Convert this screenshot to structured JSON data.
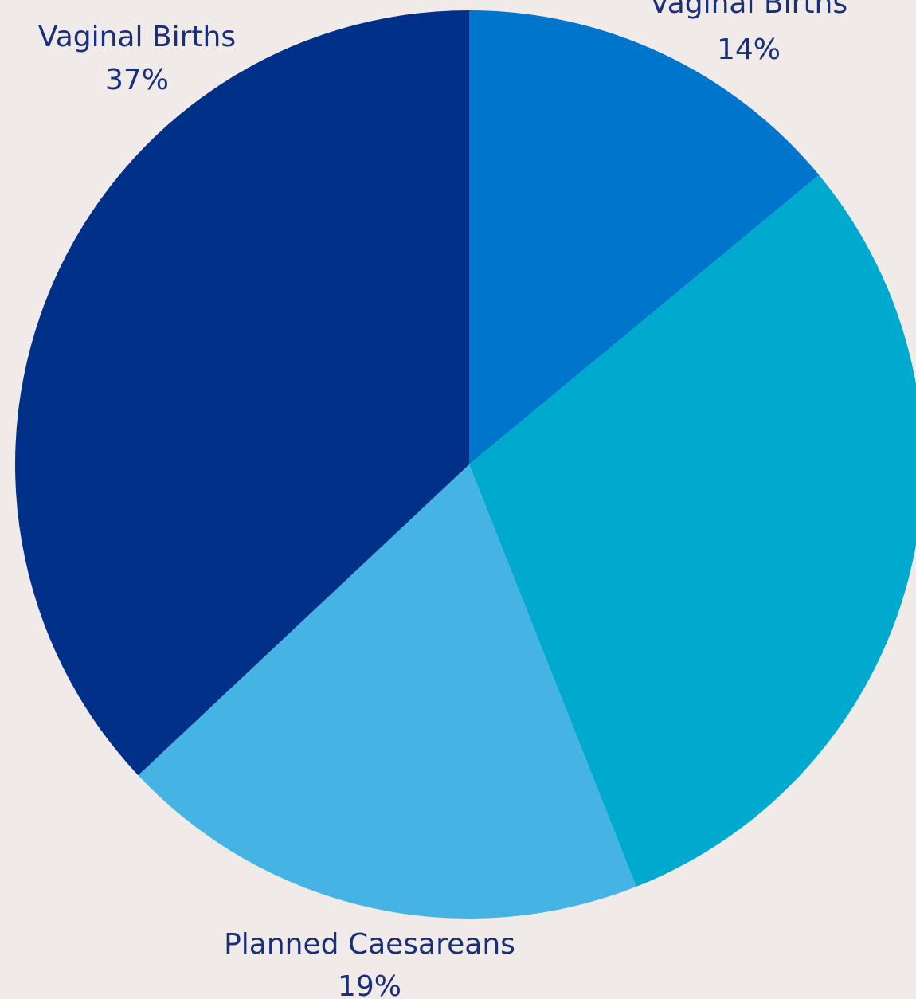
{
  "chart_data": {
    "type": "pie",
    "start_angle_deg": 0,
    "direction": "clockwise",
    "slices": [
      {
        "label": "Vaginal Births",
        "value": 14,
        "value_label": "14%",
        "color": "#0075cc"
      },
      {
        "label": "",
        "value": 30,
        "value_label": "",
        "color": "#00aacf"
      },
      {
        "label": "Planned Caesareans",
        "value": 19,
        "value_label": "19%",
        "color": "#45b4e5"
      },
      {
        "label": "Vaginal Births",
        "value": 37,
        "value_label": "37%",
        "color": "#003087"
      }
    ]
  }
}
